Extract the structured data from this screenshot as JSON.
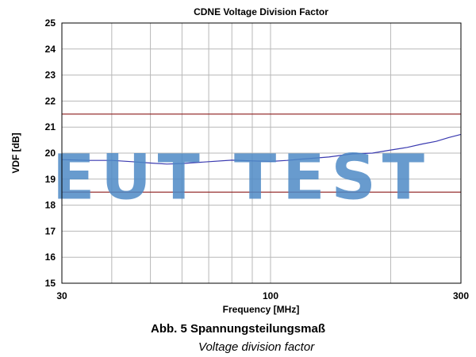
{
  "chart_data": {
    "type": "line",
    "title": "CDNE Voltage Division Factor",
    "xlabel": "Frequency [MHz]",
    "ylabel": "VDF [dB]",
    "xscale": "log",
    "xlim": [
      30,
      300
    ],
    "ylim": [
      15,
      25
    ],
    "x_tick_labels": [
      "30",
      "100",
      "300"
    ],
    "y_tick_labels": [
      "15",
      "16",
      "17",
      "18",
      "19",
      "20",
      "21",
      "22",
      "23",
      "24",
      "25"
    ],
    "grid": true,
    "limit_lines": [
      21.5,
      18.5
    ],
    "series": [
      {
        "x": [
          30,
          35,
          40,
          45,
          50,
          55,
          60,
          70,
          80,
          90,
          100,
          110,
          120,
          140,
          160,
          180,
          200,
          220,
          240,
          260,
          280,
          300
        ],
        "y": [
          19.75,
          19.72,
          19.72,
          19.67,
          19.62,
          19.58,
          19.6,
          19.67,
          19.73,
          19.7,
          19.68,
          19.72,
          19.77,
          19.85,
          19.97,
          20.0,
          20.12,
          20.22,
          20.35,
          20.45,
          20.6,
          20.72
        ]
      }
    ],
    "colors": {
      "series": "#3a3ab0",
      "limit_lines": "#8b1a1a",
      "grid": "#b8b8b8",
      "watermark": "#4d8ac6"
    }
  },
  "watermark": "EUT TEST",
  "caption": {
    "line1": "Abb. 5 Spannungsteilungsmaß",
    "line2": "Voltage division factor"
  }
}
